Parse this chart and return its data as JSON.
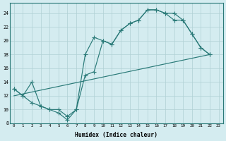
{
  "xlabel": "Humidex (Indice chaleur)",
  "bg_color": "#d4ecf0",
  "line_color": "#2a7a78",
  "grid_color": "#b0d0d4",
  "xlim": [
    -0.5,
    23.5
  ],
  "ylim": [
    8,
    25.5
  ],
  "yticks": [
    8,
    10,
    12,
    14,
    16,
    18,
    20,
    22,
    24
  ],
  "xticks": [
    0,
    1,
    2,
    3,
    4,
    5,
    6,
    7,
    8,
    9,
    10,
    11,
    12,
    13,
    14,
    15,
    16,
    17,
    18,
    19,
    20,
    21,
    22,
    23
  ],
  "line1_x": [
    0,
    1,
    2,
    3,
    4,
    5,
    6,
    7,
    8,
    9,
    10,
    11,
    12,
    13,
    14,
    15,
    16,
    17,
    18,
    19,
    20,
    21,
    22
  ],
  "line1_y": [
    13,
    12,
    14,
    10.5,
    10,
    10,
    9,
    10,
    18,
    20.5,
    20,
    19.5,
    21.5,
    22.5,
    23,
    24.5,
    24.5,
    24,
    23,
    23,
    21,
    19,
    18
  ],
  "line2_x": [
    0,
    1,
    2,
    3,
    4,
    5,
    6,
    7,
    8,
    9,
    10,
    11,
    12,
    13,
    14,
    15,
    16,
    17,
    18,
    19,
    20,
    21,
    22
  ],
  "line2_y": [
    13,
    12,
    11,
    10.5,
    10,
    9.5,
    8.5,
    10,
    15,
    15.5,
    20,
    19.5,
    21.5,
    22.5,
    23,
    24.5,
    24.5,
    24,
    24,
    23,
    21,
    19,
    18
  ],
  "line3_x": [
    0,
    22
  ],
  "line3_y": [
    12,
    18
  ]
}
